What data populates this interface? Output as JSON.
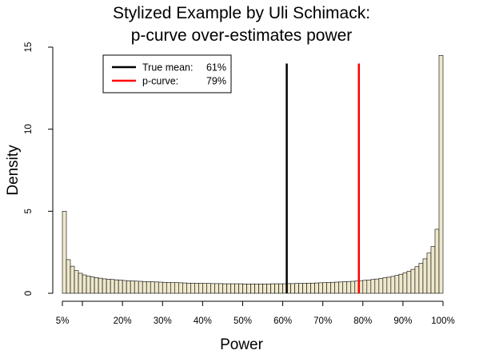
{
  "chart_data": {
    "type": "bar",
    "title_lines": [
      "Stylized Example by Uli Schimack:",
      "p-curve over-estimates power"
    ],
    "xlabel": "Power",
    "ylabel": "Density",
    "xlim": [
      5,
      100
    ],
    "ylim": [
      0,
      15
    ],
    "bin_width": 1,
    "x_ticks": [
      {
        "value": 5,
        "label": "5%"
      },
      {
        "value": 10,
        "label": ""
      },
      {
        "value": 20,
        "label": "20%"
      },
      {
        "value": 30,
        "label": "30%"
      },
      {
        "value": 40,
        "label": "40%"
      },
      {
        "value": 50,
        "label": "50%"
      },
      {
        "value": 60,
        "label": "60%"
      },
      {
        "value": 70,
        "label": "70%"
      },
      {
        "value": 80,
        "label": "80%"
      },
      {
        "value": 90,
        "label": "90%"
      },
      {
        "value": 100,
        "label": "100%"
      }
    ],
    "y_ticks": [
      {
        "value": 0,
        "label": "0"
      },
      {
        "value": 5,
        "label": "5"
      },
      {
        "value": 10,
        "label": "10"
      },
      {
        "value": 15,
        "label": "15"
      }
    ],
    "bin_start": 5,
    "densities": [
      5.0,
      2.05,
      1.65,
      1.38,
      1.22,
      1.12,
      1.05,
      1.0,
      0.95,
      0.92,
      0.88,
      0.86,
      0.84,
      0.82,
      0.8,
      0.78,
      0.76,
      0.75,
      0.74,
      0.73,
      0.72,
      0.71,
      0.7,
      0.69,
      0.68,
      0.67,
      0.66,
      0.65,
      0.65,
      0.64,
      0.63,
      0.62,
      0.62,
      0.61,
      0.61,
      0.6,
      0.6,
      0.59,
      0.59,
      0.59,
      0.58,
      0.58,
      0.58,
      0.58,
      0.58,
      0.57,
      0.57,
      0.57,
      0.57,
      0.57,
      0.57,
      0.57,
      0.58,
      0.58,
      0.58,
      0.58,
      0.59,
      0.59,
      0.6,
      0.6,
      0.61,
      0.62,
      0.62,
      0.63,
      0.64,
      0.65,
      0.66,
      0.67,
      0.68,
      0.69,
      0.7,
      0.72,
      0.73,
      0.75,
      0.77,
      0.79,
      0.81,
      0.84,
      0.87,
      0.9,
      0.94,
      0.98,
      1.03,
      1.09,
      1.16,
      1.24,
      1.34,
      1.46,
      1.62,
      1.82,
      2.1,
      2.45,
      2.85,
      3.9,
      14.5
    ],
    "bar_color": "#eee8cc",
    "bar_edge_color": "#000000",
    "vlines": [
      {
        "name": "True mean",
        "value": 61,
        "color": "#000000"
      },
      {
        "name": "p-curve",
        "value": 79,
        "color": "#ff0000"
      }
    ],
    "vline_top": 14,
    "legend": {
      "position": "top-left",
      "entries": [
        {
          "label": "True mean:",
          "value": "61%",
          "color": "#000000"
        },
        {
          "label": "p-curve:",
          "value": "79%",
          "color": "#ff0000"
        }
      ]
    }
  }
}
